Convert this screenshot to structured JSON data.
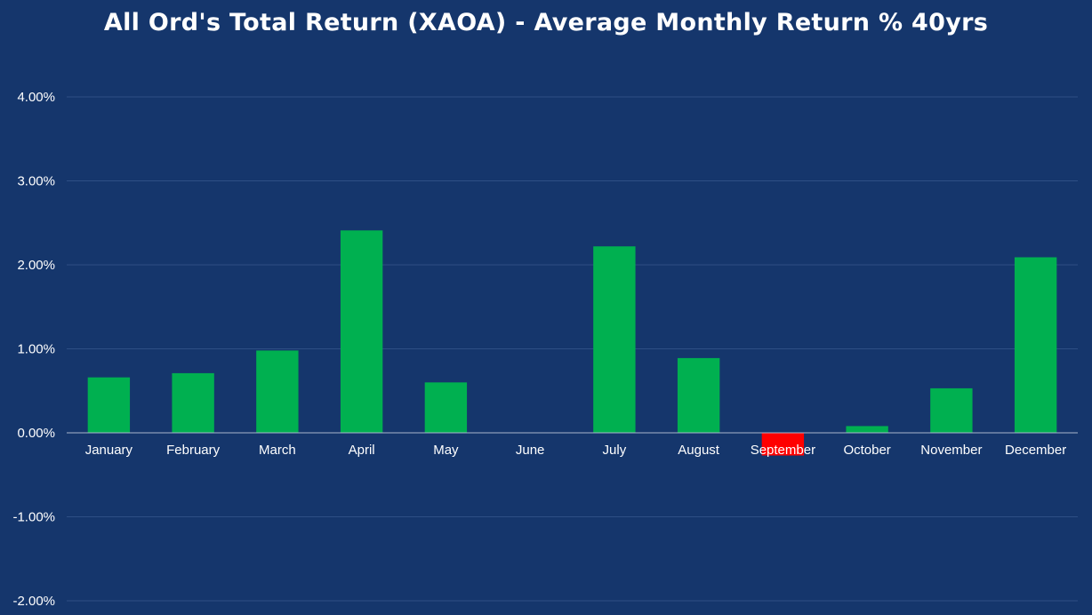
{
  "chart_data": {
    "type": "bar",
    "title": "All Ord's Total Return (XAOA) - Average Monthly Return % 40yrs",
    "xlabel": "",
    "ylabel": "",
    "categories": [
      "January",
      "February",
      "March",
      "April",
      "May",
      "June",
      "July",
      "August",
      "September",
      "October",
      "November",
      "December"
    ],
    "values": [
      0.66,
      0.71,
      0.98,
      2.41,
      0.6,
      0.005,
      2.22,
      0.89,
      -0.27,
      0.08,
      0.53,
      2.09
    ],
    "ylim": [
      -2.0,
      4.0
    ],
    "y_ticks": [
      4.0,
      3.0,
      2.0,
      1.0,
      0.0,
      -1.0,
      -2.0
    ],
    "y_tick_labels": [
      "4.00%",
      "3.00%",
      "2.00%",
      "1.00%",
      "0.00%",
      "-1.00%",
      "-2.00%"
    ],
    "grid": true,
    "legend": "none",
    "colors": {
      "background": "#15366c",
      "positive": "#00b050",
      "negative": "#ff0000",
      "gridline": "#2e4f85",
      "zero_line": "#a9b6cc",
      "text": "#ffffff"
    }
  }
}
